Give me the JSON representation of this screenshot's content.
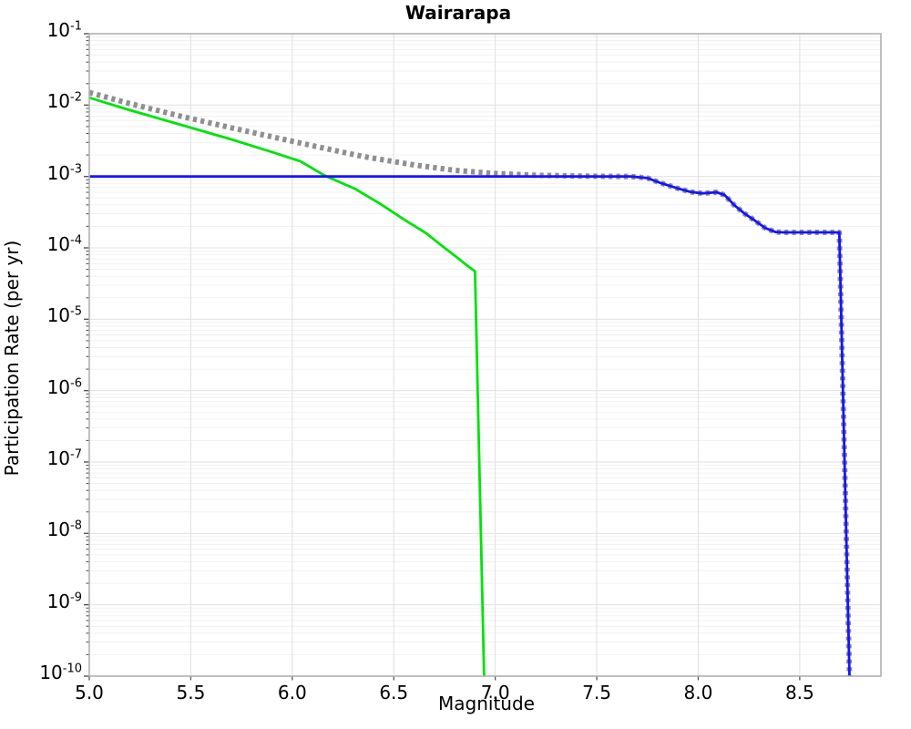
{
  "chart_data": {
    "type": "line",
    "title": "Wairarapa",
    "xlabel": "Magnitude",
    "ylabel": "Participation Rate (per yr)",
    "x_axis": {
      "scale": "linear",
      "min": 5.0,
      "max": 8.9,
      "major_ticks": [
        5.0,
        5.5,
        6.0,
        6.5,
        7.0,
        7.5,
        8.0,
        8.5
      ]
    },
    "y_axis": {
      "scale": "log",
      "min_exp": -10,
      "max_exp": -1,
      "major_tick_exps": [
        -1,
        -2,
        -3,
        -4,
        -5,
        -6,
        -7,
        -8,
        -9,
        -10
      ]
    },
    "grid": {
      "major": true,
      "minor_y": true,
      "vertical_major": true
    },
    "legend": null,
    "series": [
      {
        "name": "dotted-gray-curve",
        "color": "#8f8f8f",
        "style": "dotted",
        "width": 6,
        "points": [
          [
            5.0,
            0.015
          ],
          [
            5.2,
            0.0105
          ],
          [
            5.45,
            0.007
          ],
          [
            5.7,
            0.0048
          ],
          [
            5.9,
            0.0036
          ],
          [
            6.1,
            0.0027
          ],
          [
            6.35,
            0.0019
          ],
          [
            6.6,
            0.00145
          ],
          [
            6.8,
            0.00122
          ],
          [
            7.0,
            0.0011
          ],
          [
            7.2,
            0.00104
          ],
          [
            7.45,
            0.00101
          ],
          [
            7.67,
            0.001
          ],
          [
            7.75,
            0.00095
          ],
          [
            7.81,
            0.00082
          ],
          [
            7.9,
            0.00068
          ],
          [
            7.96,
            0.00061
          ],
          [
            8.02,
            0.00058
          ],
          [
            8.09,
            0.0006
          ],
          [
            8.13,
            0.00055
          ],
          [
            8.18,
            0.00039
          ],
          [
            8.23,
            0.0003
          ],
          [
            8.28,
            0.00024
          ],
          [
            8.33,
            0.00019
          ],
          [
            8.38,
            0.000167
          ],
          [
            8.42,
            0.000165
          ],
          [
            8.695,
            0.000165
          ],
          [
            8.745,
            1e-10
          ]
        ]
      },
      {
        "name": "green-curve",
        "color": "#00e20a",
        "style": "solid",
        "width": 2.8,
        "points": [
          [
            5.0,
            0.0127
          ],
          [
            5.2,
            0.0085
          ],
          [
            5.45,
            0.0053
          ],
          [
            5.7,
            0.0033
          ],
          [
            5.9,
            0.0022
          ],
          [
            6.04,
            0.00163
          ],
          [
            6.16,
            0.00103
          ],
          [
            6.31,
            0.00067
          ],
          [
            6.43,
            0.00042
          ],
          [
            6.55,
            0.00025
          ],
          [
            6.66,
            0.00016
          ],
          [
            6.74,
            0.000105
          ],
          [
            6.8,
            7.8e-05
          ],
          [
            6.86,
            5.7e-05
          ],
          [
            6.9,
            4.7e-05
          ],
          [
            6.945,
            1e-10
          ]
        ]
      },
      {
        "name": "blue-curve",
        "color": "#1414ff",
        "style": "solid",
        "width": 2.8,
        "points": [
          [
            5.0,
            0.001
          ],
          [
            7.67,
            0.001
          ],
          [
            7.75,
            0.00095
          ],
          [
            7.81,
            0.00082
          ],
          [
            7.9,
            0.00068
          ],
          [
            7.96,
            0.00061
          ],
          [
            8.02,
            0.00058
          ],
          [
            8.09,
            0.0006
          ],
          [
            8.13,
            0.00055
          ],
          [
            8.18,
            0.00039
          ],
          [
            8.23,
            0.0003
          ],
          [
            8.28,
            0.00024
          ],
          [
            8.33,
            0.00019
          ],
          [
            8.38,
            0.000167
          ],
          [
            8.42,
            0.000165
          ],
          [
            8.695,
            0.000165
          ],
          [
            8.745,
            1e-10
          ]
        ]
      }
    ]
  },
  "colors": {
    "background": "#ffffff",
    "spine": "#b0b0b0",
    "grid_major": "#e2e2e2",
    "grid_minor": "#f1f1f1",
    "tick": "#555555",
    "text": "#000000"
  }
}
